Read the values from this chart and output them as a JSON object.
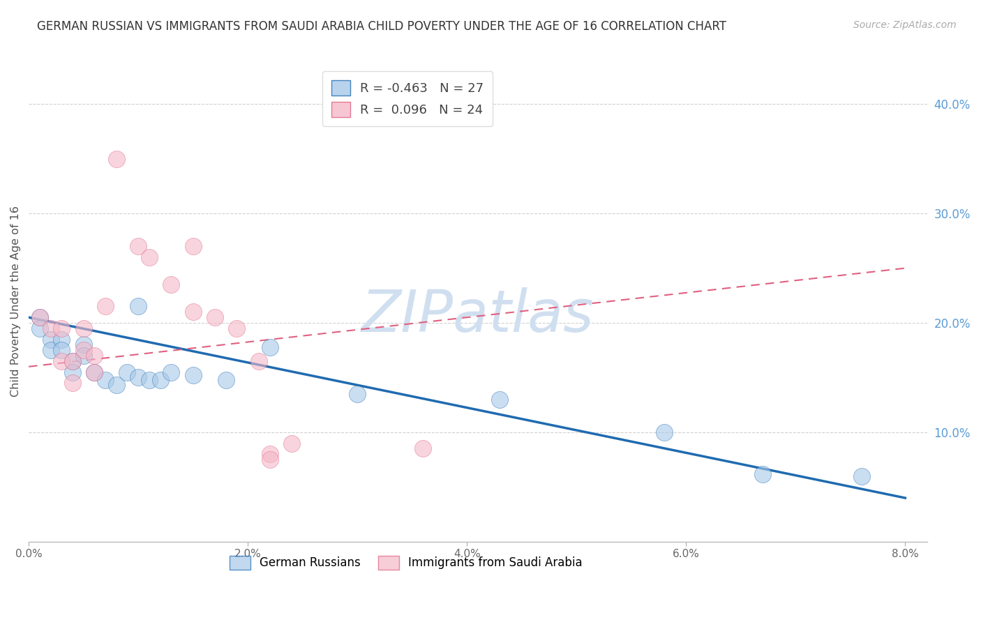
{
  "title": "GERMAN RUSSIAN VS IMMIGRANTS FROM SAUDI ARABIA CHILD POVERTY UNDER THE AGE OF 16 CORRELATION CHART",
  "source": "Source: ZipAtlas.com",
  "ylabel": "Child Poverty Under the Age of 16",
  "xlim": [
    0.0,
    0.082
  ],
  "ylim": [
    0.0,
    0.44
  ],
  "xticks": [
    0.0,
    0.02,
    0.04,
    0.06,
    0.08
  ],
  "xticklabels": [
    "0.0%",
    "2.0%",
    "4.0%",
    "6.0%",
    "8.0%"
  ],
  "yticks_right": [
    0.1,
    0.2,
    0.3,
    0.4
  ],
  "ytick_labels_right": [
    "10.0%",
    "20.0%",
    "30.0%",
    "40.0%"
  ],
  "legend1_r": "-0.463",
  "legend1_n": "27",
  "legend2_r": " 0.096",
  "legend2_n": "24",
  "color_blue": "#a8c8e8",
  "color_pink": "#f4b8c8",
  "line_blue": "#1f6bb0",
  "line_pink": "#e06080",
  "watermark": "ZIPatlas",
  "watermark_color": "#d0dff0",
  "blue_trend_x0": 0.0,
  "blue_trend_y0": 0.205,
  "blue_trend_x1": 0.08,
  "blue_trend_y1": 0.04,
  "pink_trend_x0": 0.0,
  "pink_trend_y0": 0.16,
  "pink_trend_x1": 0.08,
  "pink_trend_y1": 0.25,
  "blue_x": [
    0.001,
    0.001,
    0.002,
    0.002,
    0.003,
    0.003,
    0.004,
    0.004,
    0.005,
    0.005,
    0.006,
    0.007,
    0.008,
    0.009,
    0.01,
    0.01,
    0.011,
    0.012,
    0.013,
    0.015,
    0.018,
    0.022,
    0.03,
    0.043,
    0.058,
    0.067,
    0.076
  ],
  "blue_y": [
    0.205,
    0.195,
    0.185,
    0.175,
    0.185,
    0.175,
    0.165,
    0.155,
    0.18,
    0.17,
    0.155,
    0.148,
    0.143,
    0.155,
    0.215,
    0.15,
    0.148,
    0.148,
    0.155,
    0.152,
    0.148,
    0.178,
    0.135,
    0.13,
    0.1,
    0.062,
    0.06
  ],
  "pink_x": [
    0.001,
    0.002,
    0.003,
    0.003,
    0.004,
    0.004,
    0.005,
    0.005,
    0.006,
    0.006,
    0.007,
    0.008,
    0.01,
    0.011,
    0.013,
    0.015,
    0.015,
    0.017,
    0.019,
    0.021,
    0.022,
    0.022,
    0.024,
    0.036
  ],
  "pink_y": [
    0.205,
    0.195,
    0.195,
    0.165,
    0.165,
    0.145,
    0.195,
    0.175,
    0.17,
    0.155,
    0.215,
    0.35,
    0.27,
    0.26,
    0.235,
    0.27,
    0.21,
    0.205,
    0.195,
    0.165,
    0.08,
    0.075,
    0.09,
    0.085
  ]
}
